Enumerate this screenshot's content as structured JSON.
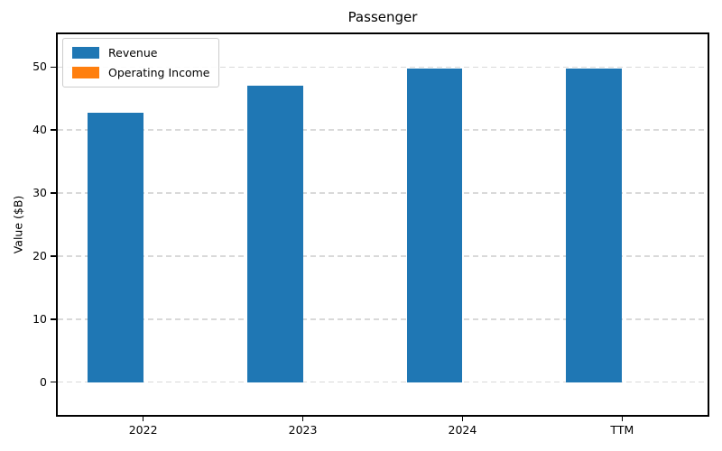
{
  "chart_data": {
    "type": "bar",
    "title": "Passenger",
    "xlabel": "",
    "ylabel": "Value ($B)",
    "categories": [
      "2022",
      "2023",
      "2024",
      "TTM"
    ],
    "series": [
      {
        "name": "Revenue",
        "color": "#1f77b4",
        "values": [
          42.7,
          47.0,
          49.7,
          49.8
        ]
      },
      {
        "name": "Operating Income",
        "color": "#ff7f0e",
        "values": [
          0,
          0,
          0,
          0
        ]
      }
    ],
    "yticks": [
      0,
      10,
      20,
      30,
      40,
      50
    ],
    "ylim": [
      -5.2,
      55.2
    ],
    "grid": "horizontal-dashed",
    "gridline_color": "#d9d9d9",
    "legend_position": "upper-left",
    "bar_group_width": 0.7,
    "axis_color": "#000000",
    "background_color": "#ffffff"
  }
}
